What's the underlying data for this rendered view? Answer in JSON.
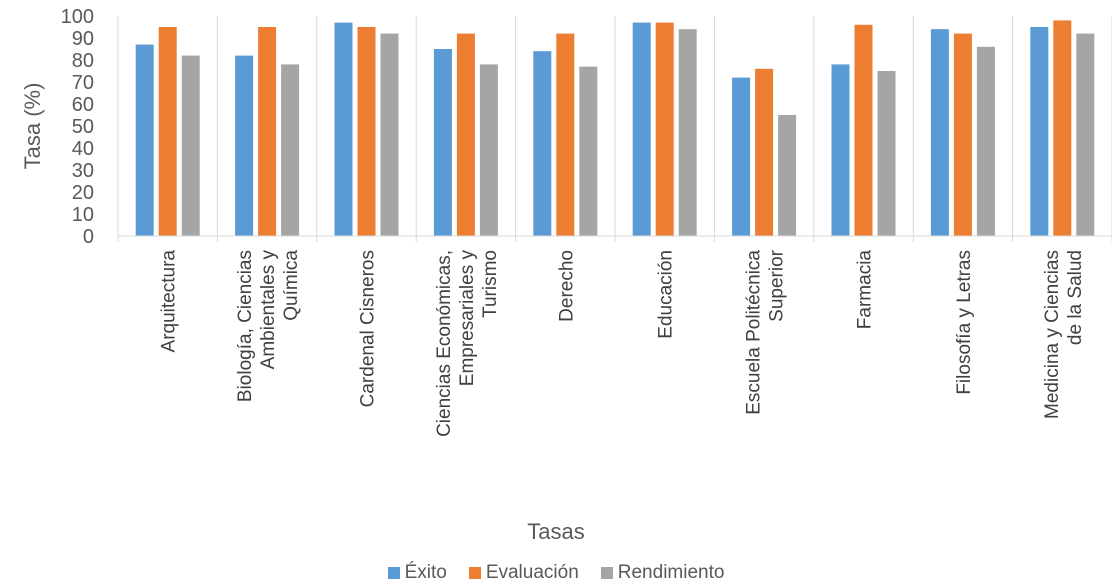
{
  "chart_data": {
    "type": "bar",
    "categories": [
      [
        "Arquitectura"
      ],
      [
        "Biología, Ciencias",
        "Ambientales y",
        "Química"
      ],
      [
        "Cardenal Cisneros"
      ],
      [
        "Ciencias Económicas,",
        "Empresariales y",
        "Turismo"
      ],
      [
        "Derecho"
      ],
      [
        "Educación"
      ],
      [
        "Escuela Politécnica",
        "Superior"
      ],
      [
        "Farmacia"
      ],
      [
        "Filosofía y Letras"
      ],
      [
        "Medicina y Ciencias",
        "de la Salud"
      ]
    ],
    "series": [
      {
        "name": "Éxito",
        "color": "#5B9BD5",
        "values": [
          87,
          82,
          97,
          85,
          84,
          97,
          72,
          78,
          94,
          95
        ]
      },
      {
        "name": "Evaluación",
        "color": "#ED7D31",
        "values": [
          95,
          95,
          95,
          92,
          92,
          97,
          76,
          96,
          92,
          98
        ]
      },
      {
        "name": "Rendimiento",
        "color": "#A5A5A5",
        "values": [
          82,
          78,
          92,
          78,
          77,
          94,
          55,
          75,
          86,
          92
        ]
      }
    ],
    "xlabel": "Tasas",
    "ylabel": "Tasa (%)",
    "ylim": [
      0,
      100
    ],
    "yticks": [
      "0",
      "10",
      "20",
      "30",
      "40",
      "50",
      "60",
      "70",
      "80",
      "90",
      "100"
    ],
    "grid": false,
    "legend_position": "bottom"
  }
}
